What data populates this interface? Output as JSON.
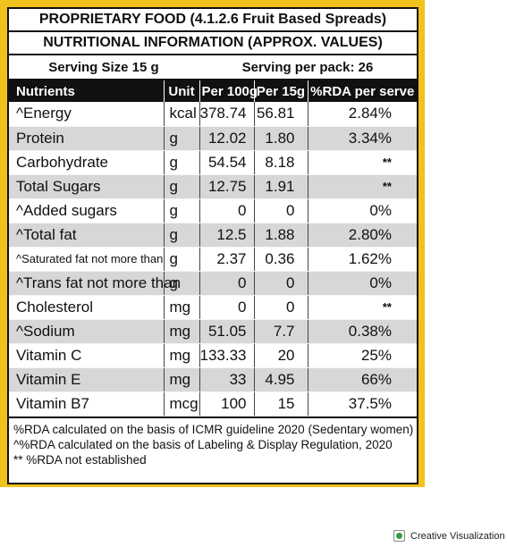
{
  "title": "PROPRIETARY FOOD (4.1.2.6 Fruit Based Spreads)",
  "subtitle": "NUTRITIONAL INFORMATION (APPROX. VALUES)",
  "serving_size": "Serving Size 15 g",
  "servings_per_pack": "Serving per pack: 26",
  "headers": [
    "Nutrients",
    "Unit",
    "Per 100g",
    "Per 15g",
    "%RDA per serve"
  ],
  "rows": [
    [
      "^Energy",
      "kcal",
      "378.74",
      "56.81",
      "2.84%"
    ],
    [
      "Protein",
      "g",
      "12.02",
      "1.80",
      "3.34%"
    ],
    [
      "Carbohydrate",
      "g",
      "54.54",
      "8.18",
      "**"
    ],
    [
      "Total Sugars",
      "g",
      "12.75",
      "1.91",
      "**"
    ],
    [
      "^Added sugars",
      "g",
      "0",
      "0",
      "0%"
    ],
    [
      "^Total fat",
      "g",
      "12.5",
      "1.88",
      "2.80%"
    ],
    [
      "^Saturated fat not more than",
      "g",
      "2.37",
      "0.36",
      "1.62%"
    ],
    [
      "^Trans fat not more than",
      "g",
      "0",
      "0",
      "0%"
    ],
    [
      "Cholesterol",
      "mg",
      "0",
      "0",
      "**"
    ],
    [
      "^Sodium",
      "mg",
      "51.05",
      "7.7",
      "0.38%"
    ],
    [
      "Vitamin C",
      "mg",
      "133.33",
      "20",
      "25%"
    ],
    [
      "Vitamin E",
      "mg",
      "33",
      "4.95",
      "66%"
    ],
    [
      "Vitamin B7",
      "mcg",
      "100",
      "15",
      "37.5%"
    ]
  ],
  "notes": [
    "%RDA calculated on the basis of ICMR guideline 2020 (Sedentary women)",
    "^%RDA  calculated on the basis of Labeling & Display Regulation, 2020",
    "** %RDA not established"
  ],
  "credit": "Creative Visualization",
  "colors": {
    "label_border": "#f1c21b",
    "header_bg": "#111111",
    "alt_row": "#d7d7d7"
  }
}
